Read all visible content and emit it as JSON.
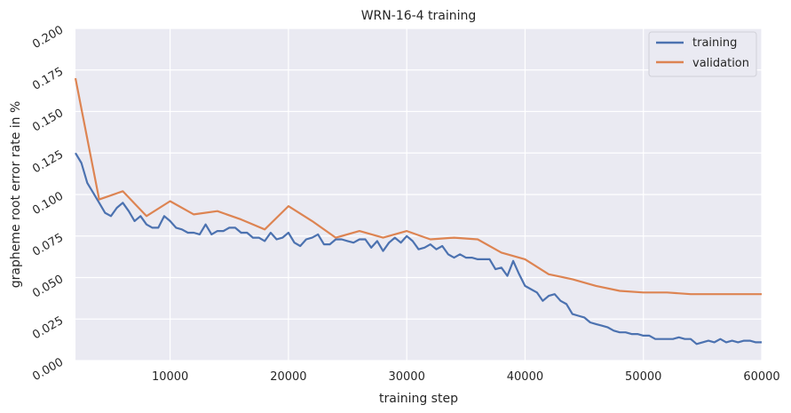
{
  "chart_data": {
    "type": "line",
    "title": "WRN-16-4 training",
    "xlabel": "training step",
    "ylabel": "grapheme root error rate in %",
    "xlim": [
      2000,
      60000
    ],
    "ylim": [
      0.0,
      0.2
    ],
    "xticks": [
      10000,
      20000,
      30000,
      40000,
      50000,
      60000
    ],
    "xtick_labels": [
      "10000",
      "20000",
      "30000",
      "40000",
      "50000",
      "60000"
    ],
    "yticks": [
      0.0,
      0.025,
      0.05,
      0.075,
      0.1,
      0.125,
      0.15,
      0.175,
      0.2
    ],
    "ytick_labels": [
      "0.000",
      "0.025",
      "0.050",
      "0.075",
      "0.100",
      "0.125",
      "0.150",
      "0.175",
      "0.200"
    ],
    "grid": true,
    "legend_position": "top-right",
    "series": [
      {
        "name": "training",
        "color": "#4c72b0",
        "x": [
          2000,
          2500,
          3000,
          3500,
          4000,
          4500,
          5000,
          5500,
          6000,
          6500,
          7000,
          7500,
          8000,
          8500,
          9000,
          9500,
          10000,
          10500,
          11000,
          11500,
          12000,
          12500,
          13000,
          13500,
          14000,
          14500,
          15000,
          15500,
          16000,
          16500,
          17000,
          17500,
          18000,
          18500,
          19000,
          19500,
          20000,
          20500,
          21000,
          21500,
          22000,
          22500,
          23000,
          23500,
          24000,
          24500,
          25000,
          25500,
          26000,
          26500,
          27000,
          27500,
          28000,
          28500,
          29000,
          29500,
          30000,
          30500,
          31000,
          31500,
          32000,
          32500,
          33000,
          33500,
          34000,
          34500,
          35000,
          35500,
          36000,
          36500,
          37000,
          37500,
          38000,
          38500,
          39000,
          39500,
          40000,
          40500,
          41000,
          41500,
          42000,
          42500,
          43000,
          43500,
          44000,
          44500,
          45000,
          45500,
          46000,
          46500,
          47000,
          47500,
          48000,
          48500,
          49000,
          49500,
          50000,
          50500,
          51000,
          51500,
          52000,
          52500,
          53000,
          53500,
          54000,
          54500,
          55000,
          55500,
          56000,
          56500,
          57000,
          57500,
          58000,
          58500,
          59000,
          59500,
          60000
        ],
        "y": [
          0.125,
          0.119,
          0.107,
          0.101,
          0.095,
          0.089,
          0.087,
          0.092,
          0.095,
          0.09,
          0.084,
          0.087,
          0.082,
          0.08,
          0.08,
          0.087,
          0.084,
          0.08,
          0.079,
          0.077,
          0.077,
          0.076,
          0.082,
          0.076,
          0.078,
          0.078,
          0.08,
          0.08,
          0.077,
          0.077,
          0.074,
          0.074,
          0.072,
          0.077,
          0.073,
          0.074,
          0.077,
          0.071,
          0.069,
          0.073,
          0.074,
          0.076,
          0.07,
          0.07,
          0.073,
          0.073,
          0.072,
          0.071,
          0.073,
          0.073,
          0.068,
          0.072,
          0.066,
          0.071,
          0.074,
          0.071,
          0.075,
          0.072,
          0.067,
          0.068,
          0.07,
          0.067,
          0.069,
          0.064,
          0.062,
          0.064,
          0.062,
          0.062,
          0.061,
          0.061,
          0.061,
          0.055,
          0.056,
          0.051,
          0.06,
          0.052,
          0.045,
          0.043,
          0.041,
          0.036,
          0.039,
          0.04,
          0.036,
          0.034,
          0.028,
          0.027,
          0.026,
          0.023,
          0.022,
          0.021,
          0.02,
          0.018,
          0.017,
          0.017,
          0.016,
          0.016,
          0.015,
          0.015,
          0.013,
          0.013,
          0.013,
          0.013,
          0.014,
          0.013,
          0.013,
          0.01,
          0.011,
          0.012,
          0.011,
          0.013,
          0.011,
          0.012,
          0.011,
          0.012,
          0.012,
          0.011,
          0.011
        ]
      },
      {
        "name": "validation",
        "color": "#dd8452",
        "x": [
          2000,
          4000,
          6000,
          8000,
          10000,
          12000,
          14000,
          16000,
          18000,
          20000,
          22000,
          24000,
          26000,
          28000,
          30000,
          32000,
          34000,
          36000,
          38000,
          40000,
          42000,
          44000,
          46000,
          48000,
          50000,
          52000,
          54000,
          56000,
          58000,
          60000
        ],
        "y": [
          0.17,
          0.097,
          0.102,
          0.087,
          0.096,
          0.088,
          0.09,
          0.085,
          0.079,
          0.093,
          0.084,
          0.074,
          0.078,
          0.074,
          0.078,
          0.073,
          0.074,
          0.073,
          0.065,
          0.061,
          0.052,
          0.049,
          0.045,
          0.042,
          0.041,
          0.041,
          0.04,
          0.04,
          0.04,
          0.04
        ]
      }
    ]
  }
}
